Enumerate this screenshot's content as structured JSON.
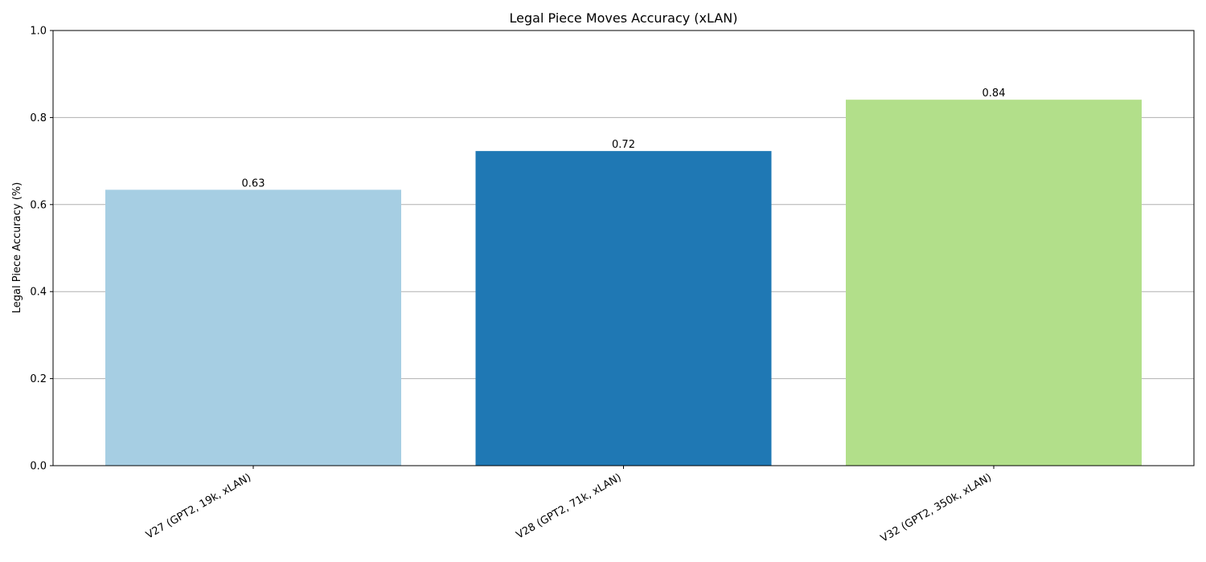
{
  "chart_data": {
    "type": "bar",
    "title": "Legal Piece Moves Accuracy (xLAN)",
    "xlabel": "",
    "ylabel": "Legal Piece Accuracy (%)",
    "ylim": [
      0,
      1.0
    ],
    "yticks": [
      0.0,
      0.2,
      0.4,
      0.6,
      0.8,
      1.0
    ],
    "ytick_labels": [
      "0.0",
      "0.2",
      "0.4",
      "0.6",
      "0.8",
      "1.0"
    ],
    "grid": "y",
    "categories": [
      "V27 (GPT2, 19k, xLAN)",
      "V28 (GPT2, 71k, xLAN)",
      "V32 (GPT2, 350k, xLAN)"
    ],
    "values": [
      0.634,
      0.723,
      0.841
    ],
    "value_labels": [
      "0.63",
      "0.72",
      "0.84"
    ],
    "colors": [
      "#a6cee3",
      "#1f78b4",
      "#b2df8a"
    ]
  }
}
